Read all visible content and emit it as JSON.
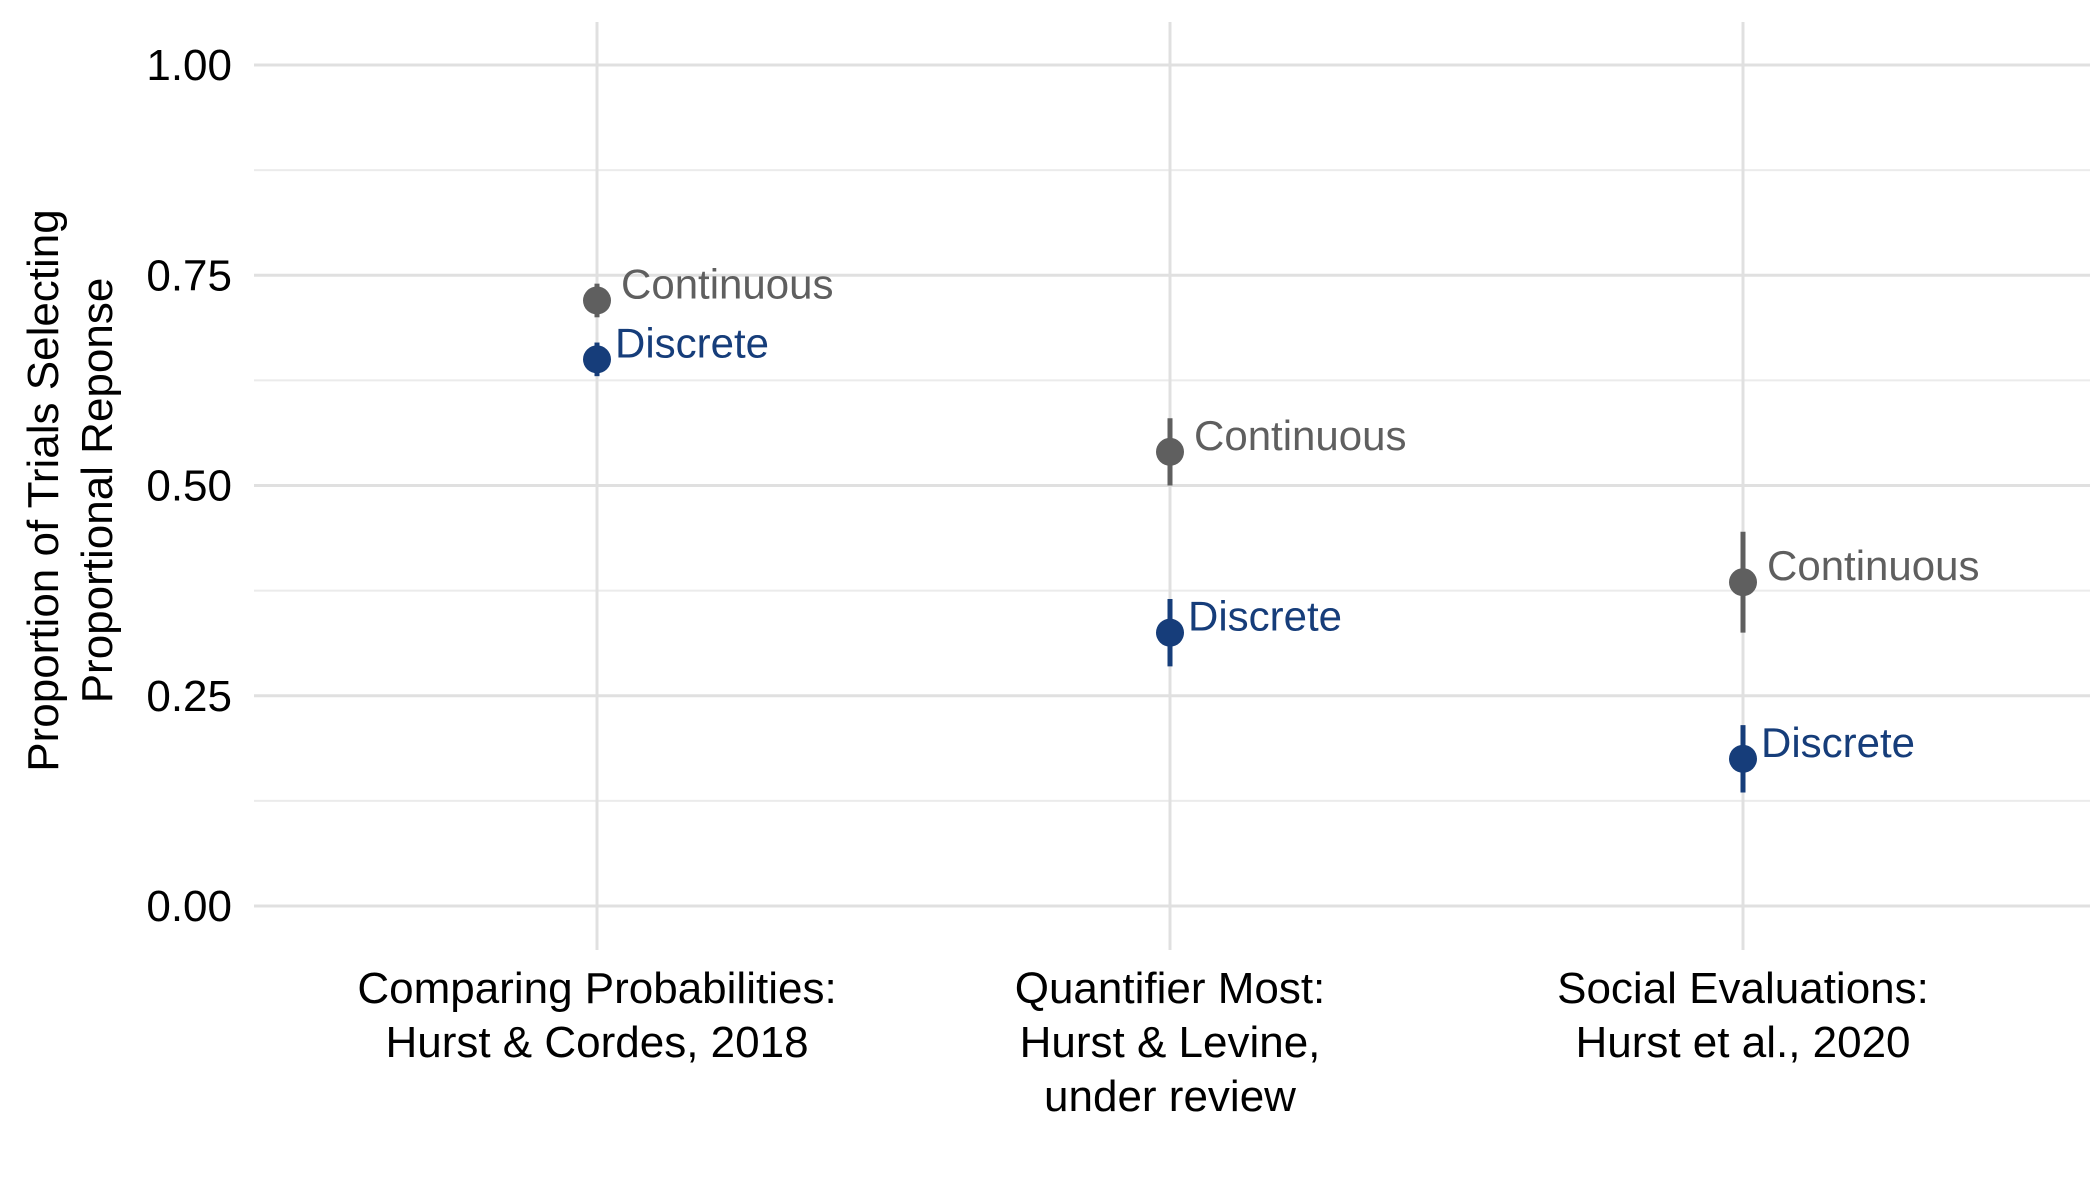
{
  "chart_data": {
    "type": "scatter",
    "title": "",
    "ylabel_lines": [
      "Proportion of Trials Selecting",
      "Proportional Reponse"
    ],
    "xlabel": "",
    "ylim": [
      0,
      1
    ],
    "yticks": [
      "0.00",
      "0.25",
      "0.50",
      "0.75",
      "1.00"
    ],
    "ytick_values": [
      0,
      0.25,
      0.5,
      0.75,
      1
    ],
    "grid": true,
    "legend": "none (direct labels)",
    "categories": [
      {
        "lines": [
          "Comparing Probabilities:",
          "Hurst & Cordes, 2018"
        ]
      },
      {
        "lines": [
          "Quantifier Most:",
          "Hurst & Levine,",
          "under review"
        ]
      },
      {
        "lines": [
          "Social Evaluations:",
          "Hurst et al., 2020"
        ]
      }
    ],
    "series": [
      {
        "name": "Continuous",
        "color": "#5f5f5f",
        "values": [
          0.72,
          0.54,
          0.385
        ],
        "ci_low": [
          0.7,
          0.5,
          0.325
        ],
        "ci_high": [
          0.74,
          0.58,
          0.445
        ]
      },
      {
        "name": "Discrete",
        "color": "#163d7a",
        "values": [
          0.65,
          0.325,
          0.175
        ],
        "ci_low": [
          0.63,
          0.285,
          0.135
        ],
        "ci_high": [
          0.67,
          0.365,
          0.215
        ]
      }
    ]
  }
}
